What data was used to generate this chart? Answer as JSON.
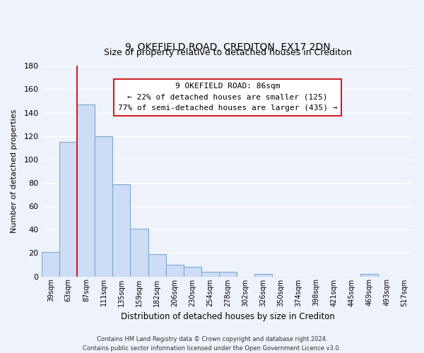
{
  "title": "9, OKEFIELD ROAD, CREDITON, EX17 2DN",
  "subtitle": "Size of property relative to detached houses in Crediton",
  "xlabel": "Distribution of detached houses by size in Crediton",
  "ylabel": "Number of detached properties",
  "bar_labels": [
    "39sqm",
    "63sqm",
    "87sqm",
    "111sqm",
    "135sqm",
    "159sqm",
    "182sqm",
    "206sqm",
    "230sqm",
    "254sqm",
    "278sqm",
    "302sqm",
    "326sqm",
    "350sqm",
    "374sqm",
    "398sqm",
    "421sqm",
    "445sqm",
    "469sqm",
    "493sqm",
    "517sqm"
  ],
  "bar_values": [
    21,
    115,
    147,
    120,
    79,
    41,
    19,
    10,
    8,
    4,
    4,
    0,
    2,
    0,
    0,
    0,
    0,
    0,
    2,
    0,
    0
  ],
  "bar_color": "#ccddf5",
  "bar_edge_color": "#7aaad0",
  "highlight_line_color": "#cc2222",
  "highlight_bar_index": 2,
  "ylim": [
    0,
    180
  ],
  "yticks": [
    0,
    20,
    40,
    60,
    80,
    100,
    120,
    140,
    160,
    180
  ],
  "annotation_title": "9 OKEFIELD ROAD: 86sqm",
  "annotation_line1": "← 22% of detached houses are smaller (125)",
  "annotation_line2": "77% of semi-detached houses are larger (435) →",
  "annotation_box_color": "#ffffff",
  "annotation_box_edge_color": "#cc2222",
  "footer_line1": "Contains HM Land Registry data © Crown copyright and database right 2024.",
  "footer_line2": "Contains public sector information licensed under the Open Government Licence v3.0.",
  "background_color": "#eef2fa",
  "grid_color": "#d8dff0",
  "title_fontsize": 10,
  "subtitle_fontsize": 9
}
